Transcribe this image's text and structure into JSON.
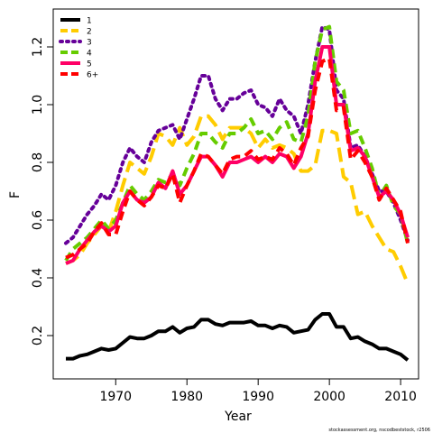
{
  "chart_data": {
    "type": "line",
    "xlabel": "Year",
    "ylabel": "F",
    "xlim": [
      1963,
      2011
    ],
    "ylim": [
      0.1,
      1.3
    ],
    "grid": false,
    "legend_position": "top-left",
    "x_ticks": [
      "1970",
      "1980",
      "1990",
      "2000",
      "2010"
    ],
    "y_ticks": [
      "0.2",
      "0.4",
      "0.6",
      "0.8",
      "1.0",
      "1.2"
    ],
    "credit": "stockassessment.org, nscodbeststock, r2506",
    "x": [
      1963,
      1964,
      1965,
      1966,
      1967,
      1968,
      1969,
      1970,
      1971,
      1972,
      1973,
      1974,
      1975,
      1976,
      1977,
      1978,
      1979,
      1980,
      1981,
      1982,
      1983,
      1984,
      1985,
      1986,
      1987,
      1988,
      1989,
      1990,
      1991,
      1992,
      1993,
      1994,
      1995,
      1996,
      1997,
      1998,
      1999,
      2000,
      2001,
      2002,
      2003,
      2004,
      2005,
      2006,
      2007,
      2008,
      2009,
      2010,
      2011
    ],
    "series": [
      {
        "name": "1",
        "color": "#000000",
        "dash": "solid",
        "values": [
          0.12,
          0.12,
          0.13,
          0.135,
          0.145,
          0.155,
          0.15,
          0.155,
          0.175,
          0.195,
          0.19,
          0.19,
          0.2,
          0.215,
          0.215,
          0.23,
          0.21,
          0.225,
          0.23,
          0.255,
          0.255,
          0.24,
          0.235,
          0.245,
          0.245,
          0.245,
          0.25,
          0.235,
          0.235,
          0.225,
          0.235,
          0.23,
          0.21,
          0.215,
          0.22,
          0.255,
          0.275,
          0.275,
          0.23,
          0.23,
          0.19,
          0.195,
          0.18,
          0.17,
          0.155,
          0.155,
          0.145,
          0.135,
          0.115
        ]
      },
      {
        "name": "2",
        "color": "#ffcc00",
        "dash": "long",
        "values": [
          0.45,
          0.46,
          0.48,
          0.52,
          0.55,
          0.58,
          0.56,
          0.63,
          0.72,
          0.8,
          0.78,
          0.76,
          0.82,
          0.9,
          0.89,
          0.86,
          0.92,
          0.86,
          0.89,
          0.96,
          0.96,
          0.93,
          0.88,
          0.92,
          0.92,
          0.92,
          0.9,
          0.85,
          0.88,
          0.85,
          0.86,
          0.85,
          0.83,
          0.77,
          0.77,
          0.79,
          0.91,
          0.91,
          0.9,
          0.75,
          0.73,
          0.62,
          0.63,
          0.58,
          0.54,
          0.5,
          0.49,
          0.44,
          0.38
        ]
      },
      {
        "name": "3",
        "color": "#660099",
        "dash": "dotted",
        "values": [
          0.52,
          0.54,
          0.58,
          0.62,
          0.65,
          0.69,
          0.67,
          0.72,
          0.8,
          0.85,
          0.82,
          0.8,
          0.87,
          0.91,
          0.92,
          0.93,
          0.88,
          0.95,
          1.02,
          1.1,
          1.1,
          1.02,
          0.98,
          1.02,
          1.02,
          1.04,
          1.05,
          1.0,
          0.99,
          0.96,
          1.02,
          0.98,
          0.96,
          0.9,
          1.0,
          1.15,
          1.27,
          1.26,
          1.05,
          1.02,
          0.85,
          0.86,
          0.82,
          0.76,
          0.7,
          0.7,
          0.66,
          0.6,
          0.53
        ]
      },
      {
        "name": "4",
        "color": "#66cc00",
        "dash": "dashed",
        "values": [
          0.46,
          0.5,
          0.52,
          0.54,
          0.57,
          0.6,
          0.57,
          0.6,
          0.66,
          0.72,
          0.69,
          0.67,
          0.7,
          0.74,
          0.73,
          0.76,
          0.72,
          0.78,
          0.83,
          0.9,
          0.9,
          0.87,
          0.85,
          0.9,
          0.9,
          0.92,
          0.95,
          0.9,
          0.91,
          0.88,
          0.92,
          0.94,
          0.88,
          0.87,
          0.96,
          1.15,
          1.26,
          1.27,
          1.08,
          1.05,
          0.9,
          0.91,
          0.85,
          0.78,
          0.68,
          0.72,
          0.65,
          0.62,
          0.52
        ]
      },
      {
        "name": "5",
        "color": "#ff0066",
        "dash": "solid",
        "values": [
          0.45,
          0.46,
          0.5,
          0.53,
          0.56,
          0.58,
          0.56,
          0.58,
          0.66,
          0.7,
          0.67,
          0.66,
          0.68,
          0.73,
          0.71,
          0.77,
          0.69,
          0.72,
          0.77,
          0.82,
          0.82,
          0.79,
          0.75,
          0.8,
          0.8,
          0.81,
          0.82,
          0.8,
          0.82,
          0.8,
          0.83,
          0.82,
          0.78,
          0.82,
          0.9,
          1.08,
          1.2,
          1.2,
          1.0,
          1.0,
          0.84,
          0.85,
          0.82,
          0.75,
          0.68,
          0.7,
          0.67,
          0.62,
          0.54
        ]
      },
      {
        "name": "6+",
        "color": "#ff0000",
        "dash": "dashed",
        "values": [
          0.47,
          0.48,
          0.5,
          0.52,
          0.56,
          0.59,
          0.55,
          0.55,
          0.63,
          0.7,
          0.67,
          0.65,
          0.68,
          0.72,
          0.71,
          0.76,
          0.66,
          0.72,
          0.77,
          0.83,
          0.82,
          0.79,
          0.76,
          0.81,
          0.82,
          0.82,
          0.84,
          0.81,
          0.82,
          0.81,
          0.85,
          0.83,
          0.79,
          0.85,
          0.89,
          1.05,
          1.15,
          1.16,
          0.98,
          0.99,
          0.81,
          0.84,
          0.8,
          0.75,
          0.67,
          0.71,
          0.67,
          0.63,
          0.52
        ]
      }
    ]
  }
}
